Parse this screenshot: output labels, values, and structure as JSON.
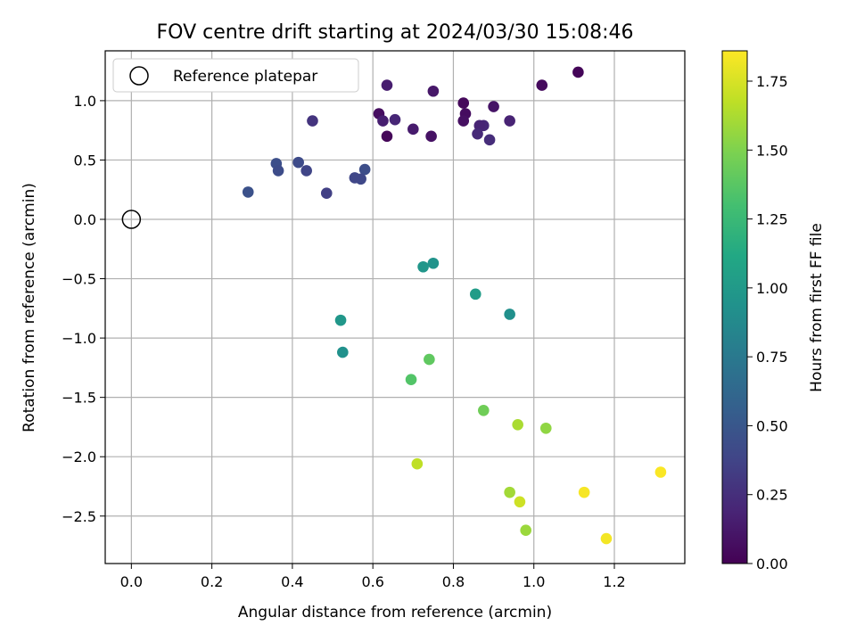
{
  "chart_data": {
    "type": "scatter",
    "title": "FOV centre drift starting at 2024/03/30 15:08:46",
    "xlabel": "Angular distance from reference (arcmin)",
    "ylabel": "Rotation from reference (arcmin)",
    "xlim": [
      -0.065,
      1.375
    ],
    "ylim": [
      -2.9,
      1.42
    ],
    "xticks": [
      0.0,
      0.2,
      0.4,
      0.6,
      0.8,
      1.0,
      1.2
    ],
    "xtick_labels": [
      "0.0",
      "0.2",
      "0.4",
      "0.6",
      "0.8",
      "1.0",
      "1.2"
    ],
    "yticks": [
      -2.5,
      -2.0,
      -1.5,
      -1.0,
      -0.5,
      0.0,
      0.5,
      1.0
    ],
    "ytick_labels": [
      "−2.5",
      "−2.0",
      "−1.5",
      "−1.0",
      "−0.5",
      "0.0",
      "0.5",
      "1.0"
    ],
    "grid": true,
    "legend": {
      "label": "Reference platepar",
      "placement": "top-left"
    },
    "reference_point": {
      "x": 0.0,
      "y": 0.0
    },
    "colorbar": {
      "label": "Hours from first FF file",
      "colormap": "viridis",
      "range": [
        0.0,
        1.86
      ],
      "ticks": [
        0.0,
        0.25,
        0.5,
        0.75,
        1.0,
        1.25,
        1.5,
        1.75
      ],
      "tick_labels": [
        "0.00",
        "0.25",
        "0.50",
        "0.75",
        "1.00",
        "1.25",
        "1.50",
        "1.75"
      ]
    },
    "series": [
      {
        "points": [
          {
            "x": 1.11,
            "y": 1.24,
            "c": 0.02
          },
          {
            "x": 1.02,
            "y": 1.13,
            "c": 0.05
          },
          {
            "x": 0.635,
            "y": 1.13,
            "c": 0.15
          },
          {
            "x": 0.75,
            "y": 1.08,
            "c": 0.12
          },
          {
            "x": 0.825,
            "y": 0.98,
            "c": 0.04
          },
          {
            "x": 0.9,
            "y": 0.95,
            "c": 0.1
          },
          {
            "x": 0.83,
            "y": 0.89,
            "c": 0.06
          },
          {
            "x": 0.615,
            "y": 0.89,
            "c": 0.07
          },
          {
            "x": 0.655,
            "y": 0.84,
            "c": 0.2
          },
          {
            "x": 0.625,
            "y": 0.83,
            "c": 0.16
          },
          {
            "x": 0.825,
            "y": 0.83,
            "c": 0.08
          },
          {
            "x": 0.94,
            "y": 0.83,
            "c": 0.18
          },
          {
            "x": 0.45,
            "y": 0.83,
            "c": 0.28
          },
          {
            "x": 0.875,
            "y": 0.79,
            "c": 0.21
          },
          {
            "x": 0.865,
            "y": 0.79,
            "c": 0.19
          },
          {
            "x": 0.7,
            "y": 0.76,
            "c": 0.14
          },
          {
            "x": 0.86,
            "y": 0.72,
            "c": 0.22
          },
          {
            "x": 0.635,
            "y": 0.7,
            "c": 0.03
          },
          {
            "x": 0.745,
            "y": 0.7,
            "c": 0.09
          },
          {
            "x": 0.89,
            "y": 0.67,
            "c": 0.24
          },
          {
            "x": 0.415,
            "y": 0.48,
            "c": 0.42
          },
          {
            "x": 0.36,
            "y": 0.47,
            "c": 0.45
          },
          {
            "x": 0.58,
            "y": 0.42,
            "c": 0.44
          },
          {
            "x": 0.365,
            "y": 0.41,
            "c": 0.43
          },
          {
            "x": 0.435,
            "y": 0.41,
            "c": 0.38
          },
          {
            "x": 0.57,
            "y": 0.34,
            "c": 0.4
          },
          {
            "x": 0.555,
            "y": 0.35,
            "c": 0.39
          },
          {
            "x": 0.29,
            "y": 0.23,
            "c": 0.46
          },
          {
            "x": 0.485,
            "y": 0.22,
            "c": 0.35
          },
          {
            "x": 0.75,
            "y": -0.37,
            "c": 0.95
          },
          {
            "x": 0.725,
            "y": -0.4,
            "c": 0.97
          },
          {
            "x": 0.855,
            "y": -0.63,
            "c": 1.02
          },
          {
            "x": 0.94,
            "y": -0.8,
            "c": 0.92
          },
          {
            "x": 0.52,
            "y": -0.85,
            "c": 0.98
          },
          {
            "x": 0.525,
            "y": -1.12,
            "c": 0.93
          },
          {
            "x": 0.74,
            "y": -1.18,
            "c": 1.4
          },
          {
            "x": 0.695,
            "y": -1.35,
            "c": 1.35
          },
          {
            "x": 0.875,
            "y": -1.61,
            "c": 1.45
          },
          {
            "x": 0.96,
            "y": -1.73,
            "c": 1.62
          },
          {
            "x": 1.03,
            "y": -1.76,
            "c": 1.55
          },
          {
            "x": 0.71,
            "y": -2.06,
            "c": 1.68
          },
          {
            "x": 1.315,
            "y": -2.13,
            "c": 1.85
          },
          {
            "x": 0.94,
            "y": -2.3,
            "c": 1.6
          },
          {
            "x": 1.125,
            "y": -2.3,
            "c": 1.84
          },
          {
            "x": 0.965,
            "y": -2.38,
            "c": 1.72
          },
          {
            "x": 0.98,
            "y": -2.62,
            "c": 1.58
          },
          {
            "x": 1.18,
            "y": -2.69,
            "c": 1.83
          }
        ]
      }
    ]
  }
}
